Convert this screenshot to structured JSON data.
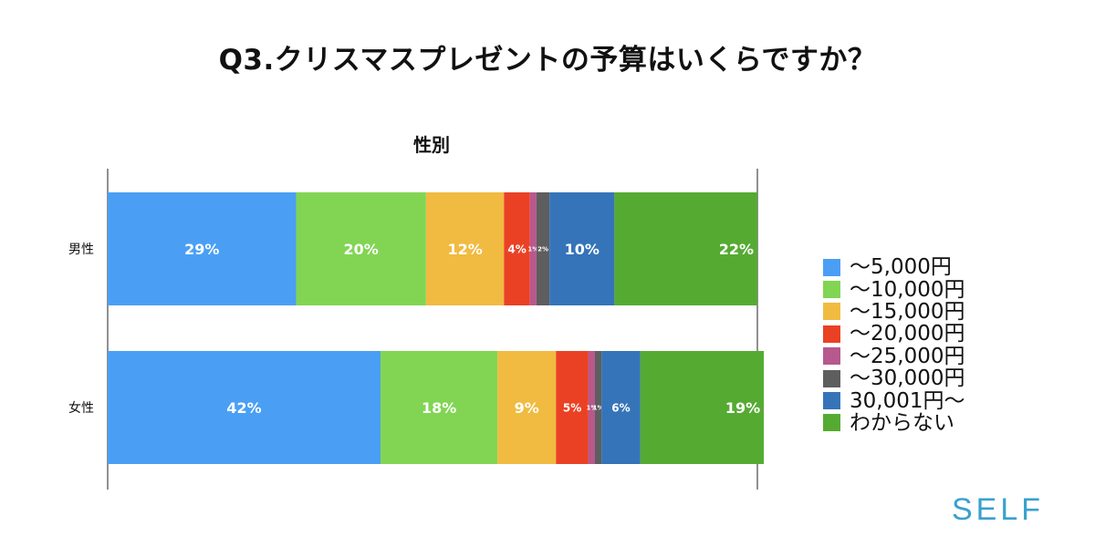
{
  "page": {
    "title": "Q3.クリスマスプレゼントの予算はいくらですか？"
  },
  "brand": {
    "text": "SELF",
    "color": "#3aa0cf"
  },
  "chart_data": {
    "type": "bar",
    "orientation": "horizontal",
    "stacked": true,
    "percent_stacked": true,
    "title": "性別",
    "categories": [
      "男性",
      "女性"
    ],
    "series": [
      {
        "name": "〜5,000円",
        "color": "#4a9ff5",
        "values": [
          29,
          42
        ],
        "value_labels": [
          "29%",
          "42%"
        ]
      },
      {
        "name": "〜10,000円",
        "color": "#81d553",
        "values": [
          20,
          18
        ],
        "value_labels": [
          "20%",
          "18%"
        ]
      },
      {
        "name": "〜15,000円",
        "color": "#f0bb40",
        "values": [
          12,
          9
        ],
        "value_labels": [
          "12%",
          "9%"
        ]
      },
      {
        "name": "〜20,000円",
        "color": "#ea4125",
        "values": [
          4,
          5
        ],
        "value_labels": [
          "4%",
          "5%"
        ]
      },
      {
        "name": "〜25,000円",
        "color": "#b7588e",
        "values": [
          1,
          1
        ],
        "value_labels": [
          "1%",
          "1%"
        ]
      },
      {
        "name": "〜30,000円",
        "color": "#5e5e5e",
        "values": [
          2,
          1
        ],
        "value_labels": [
          "2%",
          "1%"
        ]
      },
      {
        "name": "30,001円〜",
        "color": "#3574b8",
        "values": [
          10,
          6
        ],
        "value_labels": [
          "10%",
          "6%"
        ]
      },
      {
        "name": "わからない",
        "color": "#55ab32",
        "values": [
          22,
          19
        ],
        "value_labels": [
          "22%",
          "19%"
        ]
      }
    ],
    "xlim": [
      0,
      100
    ],
    "grid": false,
    "legend_position": "right"
  }
}
